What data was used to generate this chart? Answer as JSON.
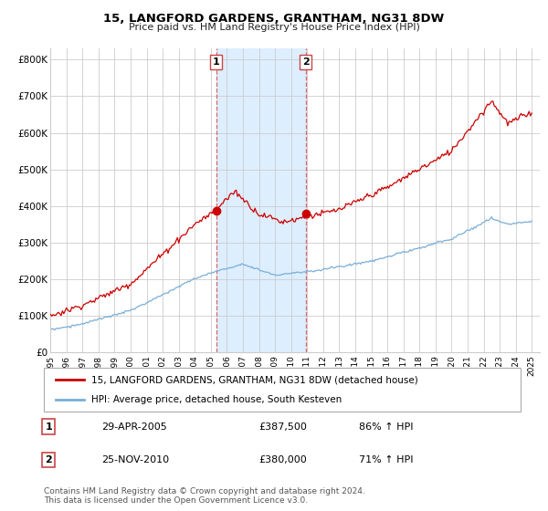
{
  "title": "15, LANGFORD GARDENS, GRANTHAM, NG31 8DW",
  "subtitle": "Price paid vs. HM Land Registry's House Price Index (HPI)",
  "ylabel_ticks": [
    "£0",
    "£100K",
    "£200K",
    "£300K",
    "£400K",
    "£500K",
    "£600K",
    "£700K",
    "£800K"
  ],
  "ytick_values": [
    0,
    100000,
    200000,
    300000,
    400000,
    500000,
    600000,
    700000,
    800000
  ],
  "ylim": [
    0,
    830000
  ],
  "xlim_start": 1995.0,
  "xlim_end": 2025.5,
  "sale1_x": 2005.33,
  "sale1_y": 387500,
  "sale2_x": 2010.9,
  "sale2_y": 380000,
  "shade_x1_start": 2005.33,
  "shade_x1_end": 2010.9,
  "legend1_label": "15, LANGFORD GARDENS, GRANTHAM, NG31 8DW (detached house)",
  "legend2_label": "HPI: Average price, detached house, South Kesteven",
  "ann1_num": "1",
  "ann1_date": "29-APR-2005",
  "ann1_price": "£387,500",
  "ann1_hpi": "86% ↑ HPI",
  "ann2_num": "2",
  "ann2_date": "25-NOV-2010",
  "ann2_price": "£380,000",
  "ann2_hpi": "71% ↑ HPI",
  "footer": "Contains HM Land Registry data © Crown copyright and database right 2024.\nThis data is licensed under the Open Government Licence v3.0.",
  "red_color": "#cc0000",
  "blue_color": "#7aaed6",
  "shade_color": "#ddeeff",
  "grid_color": "#cccccc",
  "background_color": "#ffffff"
}
